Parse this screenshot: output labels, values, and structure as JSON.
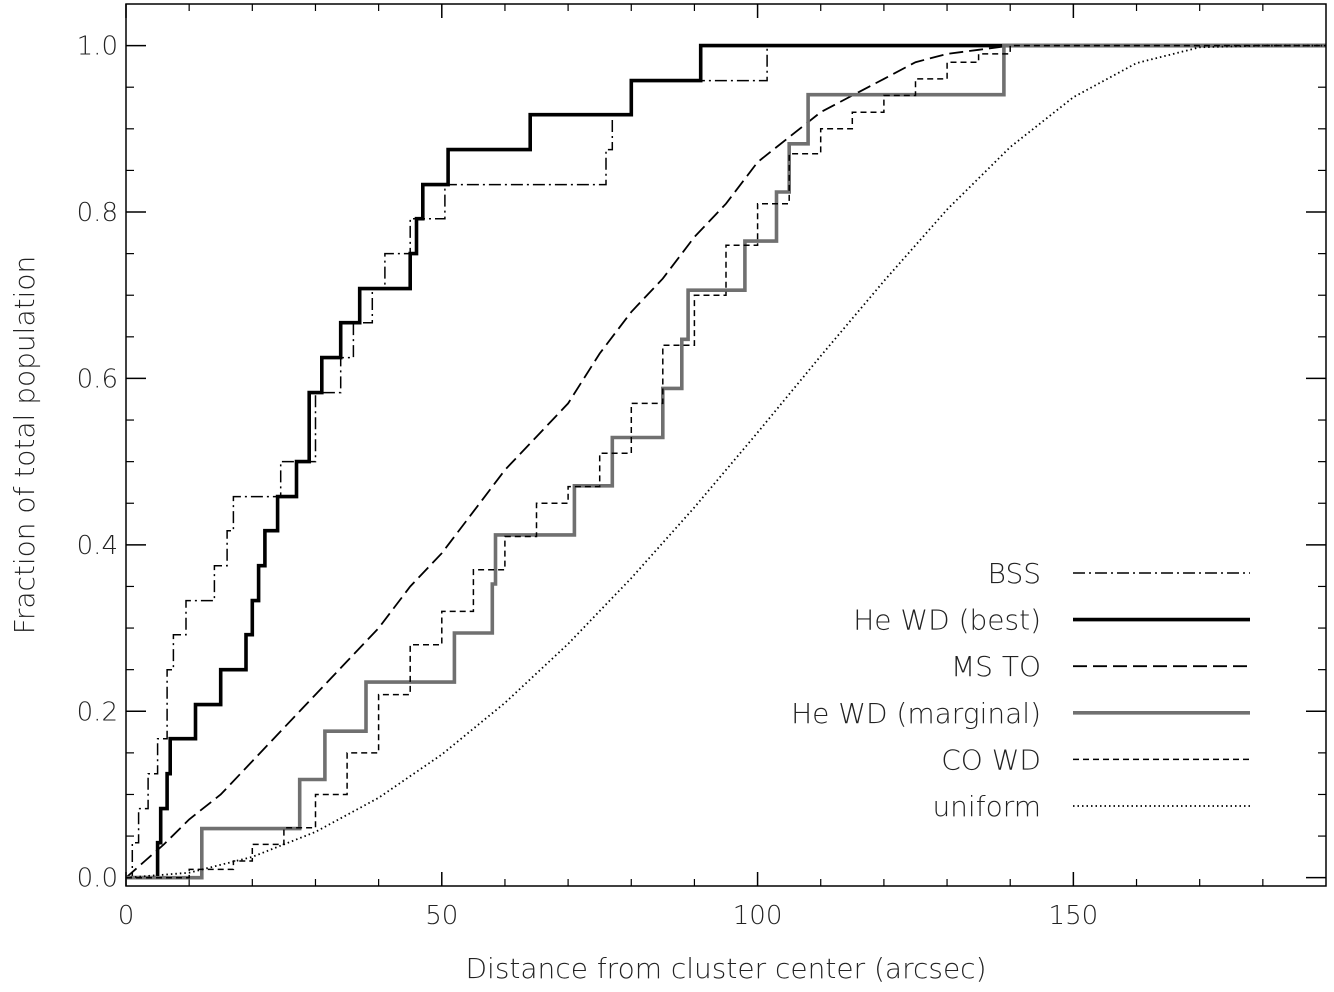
{
  "chart_data": {
    "type": "line",
    "title": "",
    "xlabel": "Distance from cluster center (arcsec)",
    "ylabel": "Fraction of total population",
    "xlim": [
      0,
      190
    ],
    "ylim": [
      -0.01,
      1.05
    ],
    "xticks": [
      0,
      50,
      100,
      150
    ],
    "xtick_labels": [
      "0",
      "50",
      "100",
      "150"
    ],
    "yticks": [
      0.0,
      0.2,
      0.4,
      0.6,
      0.8,
      1.0
    ],
    "ytick_labels": [
      "0.0",
      "0.2",
      "0.4",
      "0.6",
      "0.8",
      "1.0"
    ],
    "grid": false,
    "legend_position": "bottom-right",
    "series": [
      {
        "name": "BSS",
        "style": "dashdot",
        "color": "#000000",
        "step": true,
        "x": [
          0,
          1,
          2,
          3.5,
          5,
          6.5,
          7.5,
          9.5,
          14,
          16,
          17,
          19,
          24.5,
          30,
          30.5,
          34,
          36,
          37.5,
          39,
          41,
          42.5,
          45,
          50.5,
          53,
          76,
          77,
          80,
          81,
          92.5,
          101,
          101.5,
          103,
          104,
          106,
          190
        ],
        "y": [
          0,
          0.042,
          0.083,
          0.125,
          0.167,
          0.25,
          0.292,
          0.333,
          0.375,
          0.417,
          0.458,
          0.458,
          0.5,
          0.583,
          0.583,
          0.625,
          0.667,
          0.667,
          0.708,
          0.75,
          0.75,
          0.792,
          0.833,
          0.833,
          0.875,
          0.917,
          0.958,
          0.958,
          0.958,
          0.958,
          1.0,
          1.0,
          1.0,
          1.0,
          1.0
        ]
      },
      {
        "name": "He WD (best)",
        "style": "solid-thick",
        "color": "#000000",
        "step": true,
        "x": [
          0,
          5,
          5.5,
          6.5,
          7,
          9,
          11,
          15,
          19,
          20,
          21,
          22,
          24,
          27,
          29,
          31,
          34,
          37,
          45,
          46,
          47,
          51,
          54,
          61,
          62,
          64,
          80,
          85,
          91,
          101,
          108,
          190
        ],
        "y": [
          0,
          0.042,
          0.083,
          0.125,
          0.167,
          0.167,
          0.208,
          0.25,
          0.292,
          0.333,
          0.375,
          0.417,
          0.458,
          0.5,
          0.583,
          0.625,
          0.667,
          0.708,
          0.75,
          0.792,
          0.833,
          0.875,
          0.875,
          0.875,
          0.875,
          0.917,
          0.958,
          0.958,
          1.0,
          1.0,
          1.0,
          1.0
        ]
      },
      {
        "name": "MS TO",
        "style": "longdash",
        "color": "#000000",
        "step": false,
        "x": [
          0,
          3,
          6,
          10,
          15,
          20,
          25,
          30,
          35,
          40,
          45,
          50,
          55,
          60,
          65,
          70,
          75,
          80,
          85,
          90,
          95,
          100,
          105,
          110,
          115,
          120,
          125,
          130,
          135,
          140,
          145,
          150,
          160,
          190
        ],
        "y": [
          0,
          0.02,
          0.04,
          0.07,
          0.1,
          0.14,
          0.18,
          0.22,
          0.26,
          0.3,
          0.35,
          0.39,
          0.44,
          0.49,
          0.53,
          0.57,
          0.63,
          0.68,
          0.72,
          0.77,
          0.81,
          0.86,
          0.89,
          0.92,
          0.94,
          0.96,
          0.98,
          0.99,
          0.995,
          1.0,
          1.0,
          1.0,
          1.0,
          1.0
        ]
      },
      {
        "name": "He WD (marginal)",
        "style": "solid-gray",
        "color": "#707070",
        "step": true,
        "x": [
          0,
          12,
          12,
          27.5,
          27.5,
          31.5,
          38,
          52,
          58,
          58.5,
          71,
          77,
          85,
          88,
          89,
          98,
          103,
          105,
          108,
          139,
          190
        ],
        "y": [
          0,
          0.059,
          0.059,
          0.118,
          0.118,
          0.176,
          0.235,
          0.294,
          0.353,
          0.412,
          0.471,
          0.529,
          0.588,
          0.647,
          0.706,
          0.765,
          0.824,
          0.882,
          0.941,
          1.0,
          1.0
        ]
      },
      {
        "name": "CO WD",
        "style": "shortdash",
        "color": "#000000",
        "step": true,
        "x": [
          0,
          10,
          17,
          20,
          25,
          30,
          35,
          40,
          45,
          50,
          55,
          60,
          65,
          70,
          75,
          80,
          85,
          90,
          95,
          100,
          105,
          110,
          115,
          120,
          125,
          130,
          135,
          140,
          190
        ],
        "y": [
          0,
          0.01,
          0.02,
          0.04,
          0.06,
          0.1,
          0.15,
          0.22,
          0.28,
          0.32,
          0.37,
          0.41,
          0.45,
          0.47,
          0.51,
          0.57,
          0.64,
          0.7,
          0.76,
          0.81,
          0.87,
          0.9,
          0.92,
          0.94,
          0.96,
          0.98,
          0.99,
          1.0,
          1.0
        ]
      },
      {
        "name": "uniform",
        "style": "dotted",
        "color": "#000000",
        "step": false,
        "x": [
          0,
          10,
          20,
          30,
          40,
          50,
          60,
          70,
          80,
          90,
          100,
          110,
          120,
          130,
          140,
          150,
          160,
          170,
          180,
          190
        ],
        "y": [
          0,
          0.006,
          0.025,
          0.055,
          0.096,
          0.148,
          0.21,
          0.281,
          0.36,
          0.445,
          0.535,
          0.627,
          0.717,
          0.803,
          0.878,
          0.938,
          0.979,
          0.998,
          1.0,
          1.0
        ]
      }
    ]
  }
}
